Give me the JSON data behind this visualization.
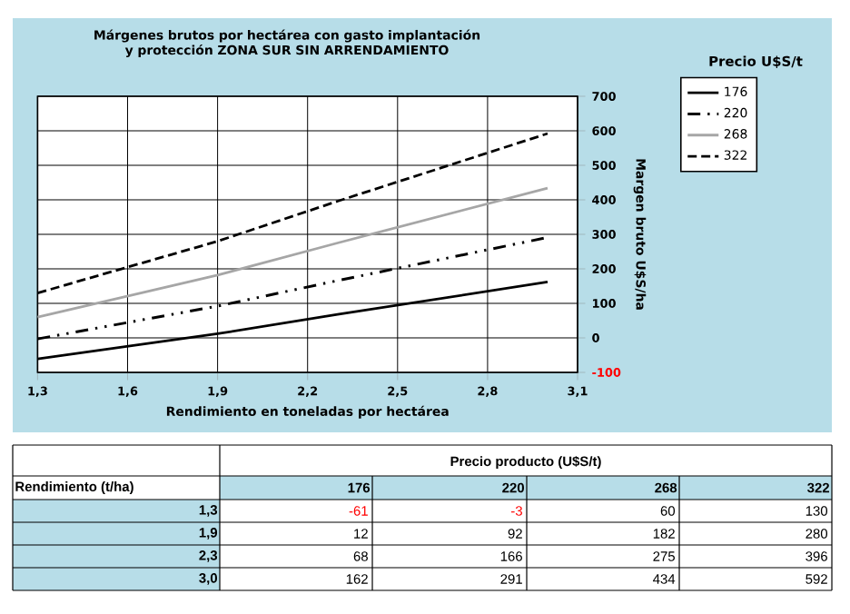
{
  "chart_data": [
    {
      "type": "line",
      "title": "Márgenes brutos por hectárea con gasto implantación y protección ZONA SUR SIN ARRENDAMIENTO",
      "xlabel": "Rendimiento en toneladas por hectárea",
      "ylabel": "Margen bruto U$S/ha",
      "legend_title": "Precio U$S/t",
      "x": [
        1.3,
        1.9,
        2.3,
        3.0
      ],
      "series": [
        {
          "name": "176",
          "color": "#000000",
          "line_style": "solid",
          "values": [
            -61,
            12,
            68,
            162
          ]
        },
        {
          "name": "220",
          "color": "#000000",
          "line_style": "dashdotdot",
          "values": [
            -3,
            92,
            166,
            291
          ]
        },
        {
          "name": "268",
          "color": "#a6a6a6",
          "line_style": "solid",
          "values": [
            60,
            182,
            275,
            434
          ]
        },
        {
          "name": "322",
          "color": "#000000",
          "line_style": "dashed",
          "values": [
            130,
            280,
            396,
            592
          ]
        }
      ],
      "xlim": [
        1.3,
        3.1
      ],
      "ylim": [
        -100,
        700
      ],
      "xticks": [
        {
          "value": 1.3,
          "label": "1,3"
        },
        {
          "value": 1.6,
          "label": "1,6"
        },
        {
          "value": 1.9,
          "label": "1,9"
        },
        {
          "value": 2.2,
          "label": "2,2"
        },
        {
          "value": 2.5,
          "label": "2,5"
        },
        {
          "value": 2.8,
          "label": "2,8"
        },
        {
          "value": 3.1,
          "label": "3,1"
        }
      ],
      "yticks": [
        -100,
        0,
        100,
        200,
        300,
        400,
        500,
        600,
        700
      ],
      "grid": true,
      "legend": "top right"
    },
    {
      "type": "other",
      "xlabel": "Precio producto (U$S/t)",
      "ylabel": "Rendimiento (t/ha)",
      "categories": [
        "176",
        "220",
        "268",
        "322"
      ],
      "y_categories": [
        "1,3",
        "1,9",
        "2,3",
        "3,0"
      ],
      "colors": [
        [
          "#ff0000",
          "#ff0000",
          "#000000",
          "#000000"
        ],
        [
          "#000000",
          "#000000",
          "#000000",
          "#000000"
        ],
        [
          "#000000",
          "#000000",
          "#000000",
          "#000000"
        ],
        [
          "#000000",
          "#000000",
          "#000000",
          "#000000"
        ]
      ],
      "cell_labels": [
        [
          "-61",
          "-3",
          "60",
          "130"
        ],
        [
          "12",
          "92",
          "182",
          "280"
        ],
        [
          "68",
          "166",
          "275",
          "396"
        ],
        [
          "162",
          "291",
          "434",
          "592"
        ]
      ]
    }
  ]
}
